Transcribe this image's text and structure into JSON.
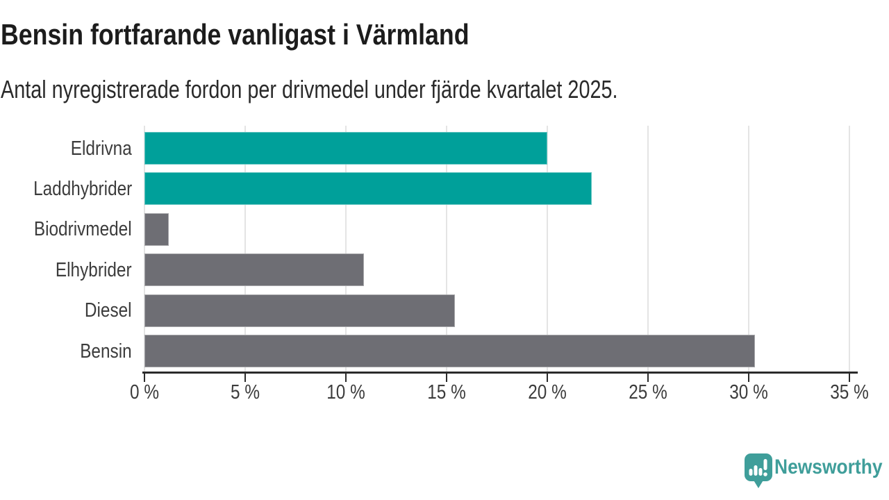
{
  "chart_data": {
    "type": "bar",
    "orientation": "horizontal",
    "title": "Bensin fortfarande vanligast i Värmland",
    "subtitle": "Antal nyregistrerade fordon per drivmedel under fjärde kvartalet 2025.",
    "categories": [
      "Eldrivna",
      "Laddhybrider",
      "Biodrivmedel",
      "Elhybrider",
      "Diesel",
      "Bensin"
    ],
    "values": [
      20.0,
      22.2,
      1.2,
      10.9,
      15.4,
      30.3
    ],
    "unit": "%",
    "xlim": [
      0,
      35
    ],
    "xticks": [
      0,
      5,
      10,
      15,
      20,
      25,
      30,
      35
    ],
    "xtick_labels": [
      "0 %",
      "5 %",
      "10 %",
      "15 %",
      "20 %",
      "25 %",
      "30 %",
      "35 %"
    ],
    "bar_colors": [
      "#00a09a",
      "#00a09a",
      "#6e6e74",
      "#6e6e74",
      "#6e6e74",
      "#6e6e74"
    ],
    "highlight_color": "#00a09a",
    "default_bar_color": "#6e6e74",
    "grid": true,
    "legend": false,
    "gridline_color": "#e4e4e4",
    "axis_color": "#2b2b2b",
    "label_color": "#3c3c3c",
    "title_color": "#1c1c1c",
    "subtitle_color": "#2a2a2a"
  },
  "branding": {
    "name": "Newsworthy",
    "color": "#3f9e9a",
    "icon": "speech-bubble-bar-chart-icon"
  }
}
